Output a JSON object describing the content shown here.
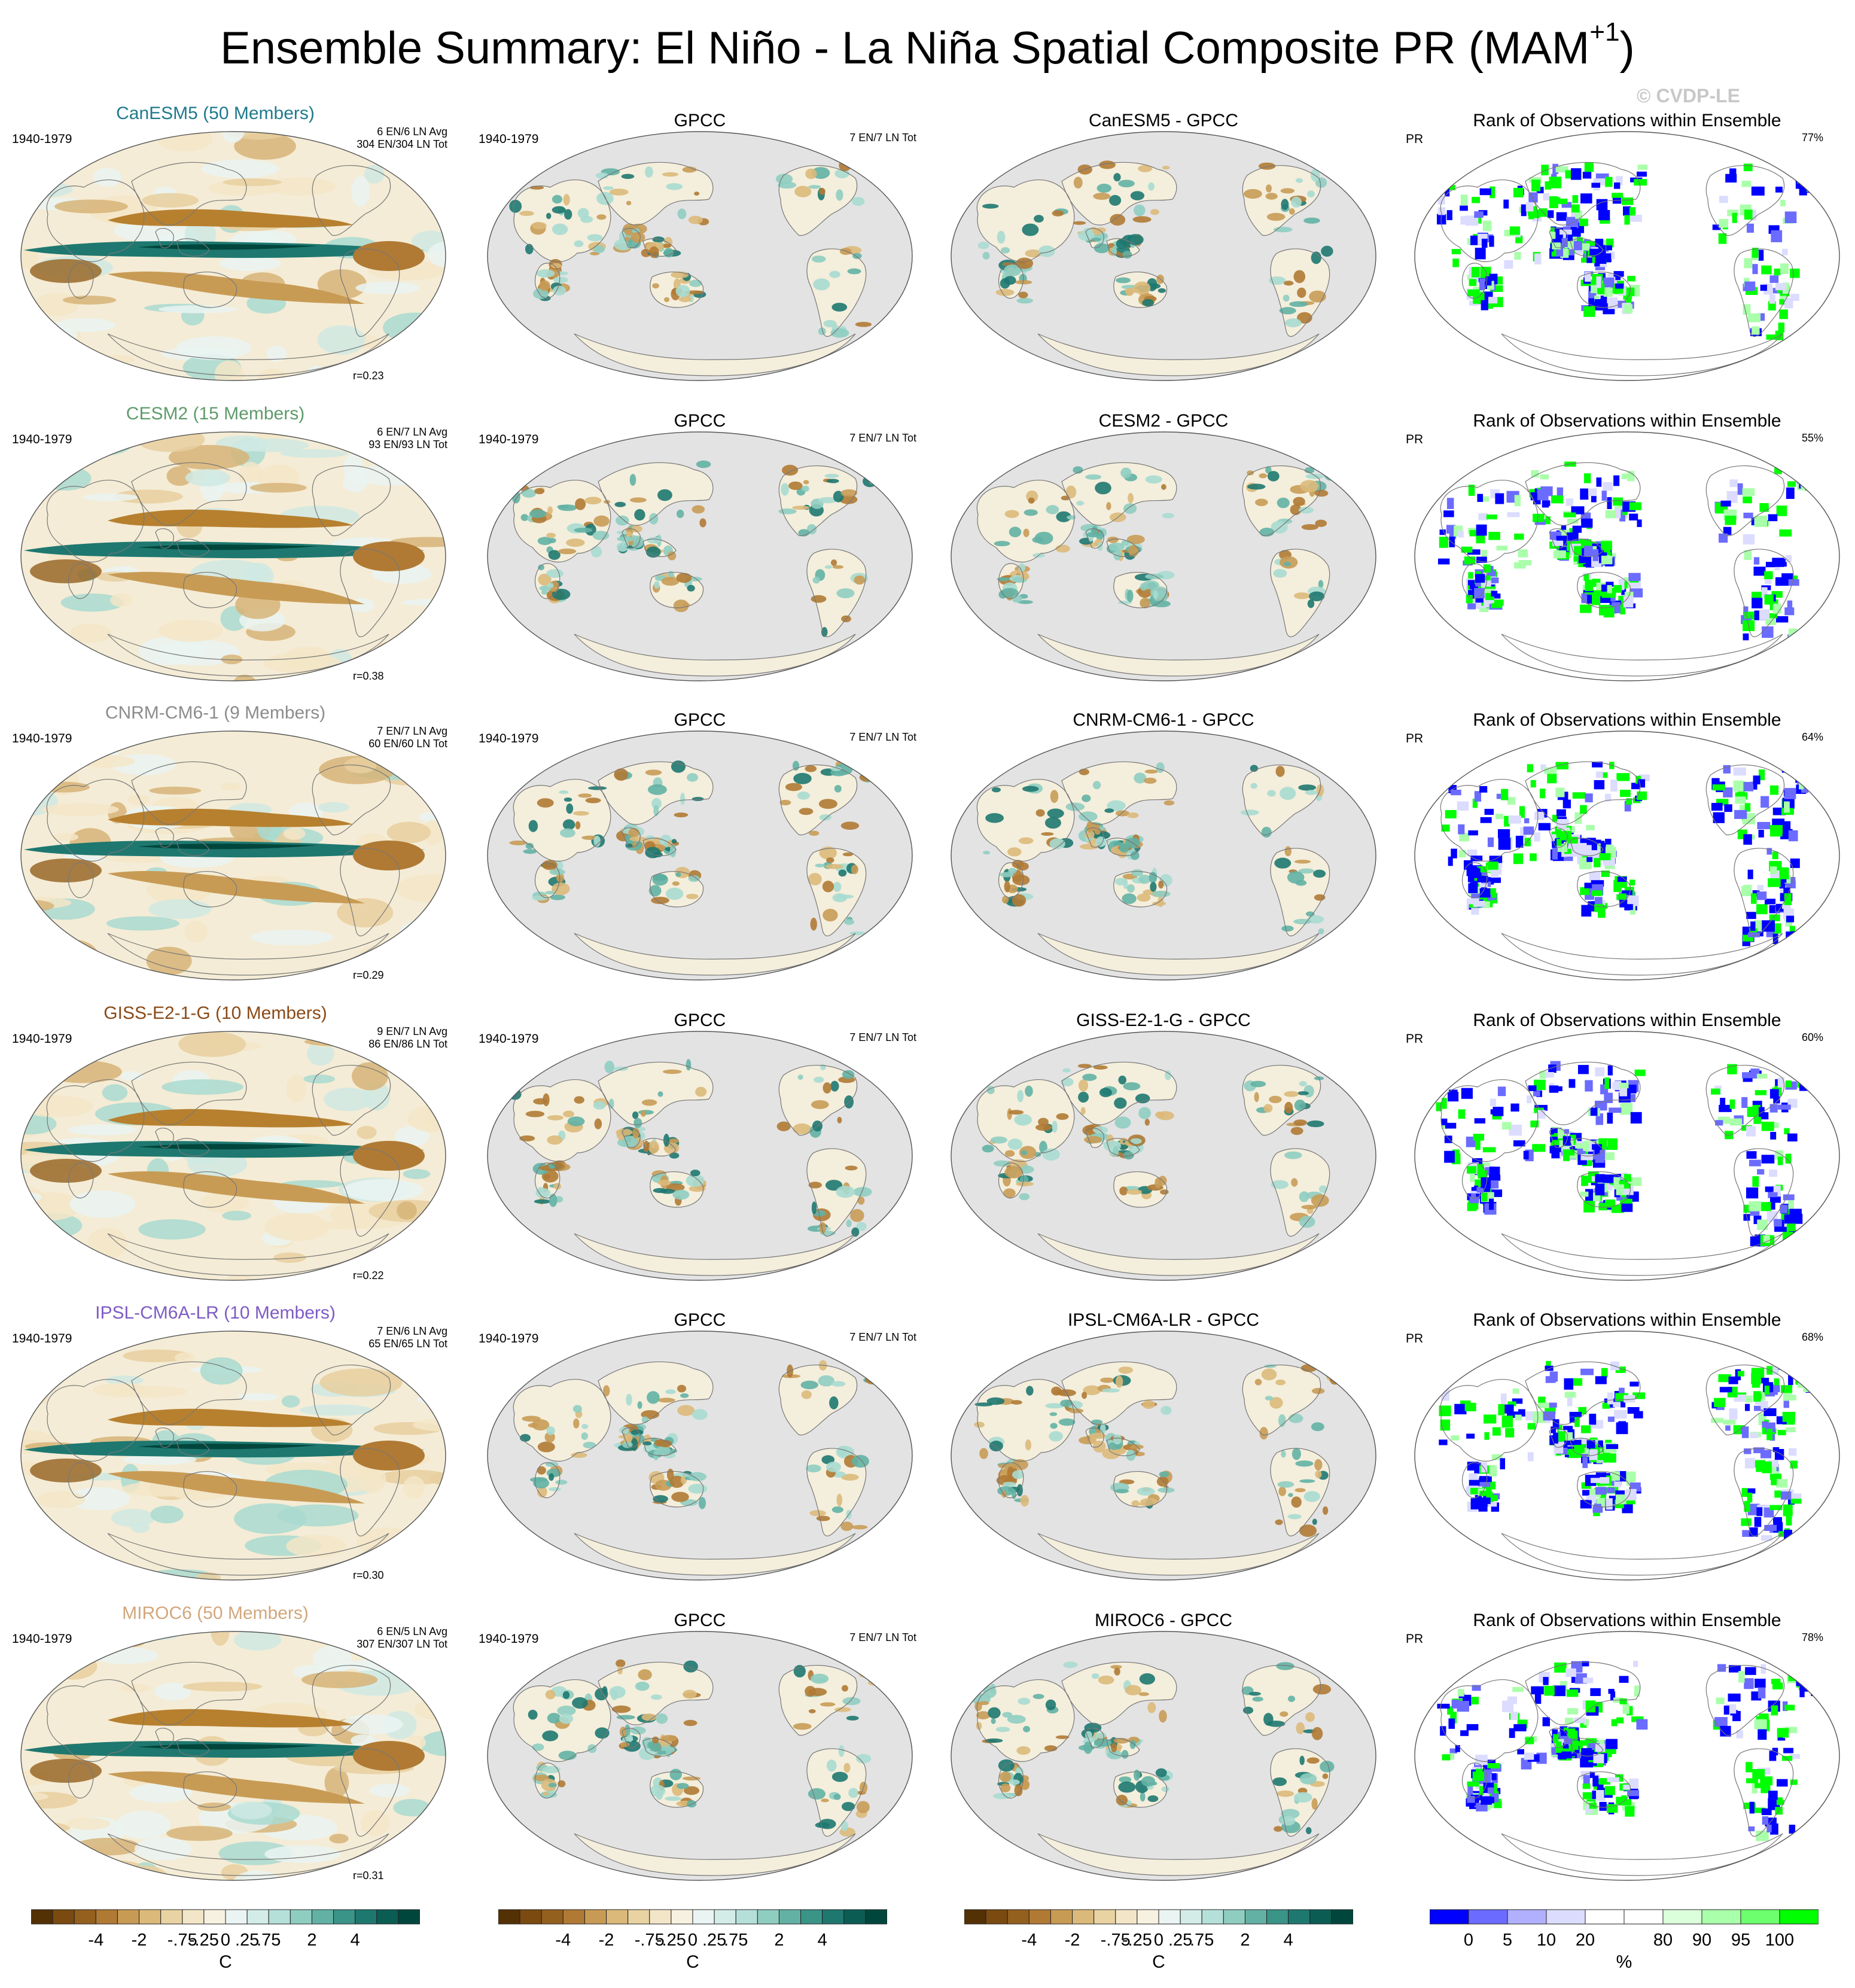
{
  "title": {
    "prefix": "Ensemble Summary: El Niño - La Niña Spatial Composite PR (MAM",
    "sup": "+1",
    "suffix": ")"
  },
  "copyright": "© CVDP-LE",
  "column_titles": {
    "obs": "GPCC",
    "rank": "Rank of Observations within Ensemble"
  },
  "rows": [
    {
      "model": "CanESM5 (50 Members)",
      "model_color": "#1f7a8c",
      "period": "1940-1979",
      "avg": "6 EN/6 LN Avg",
      "tot": "304 EN/304 LN Tot",
      "r": "r=0.23",
      "obs_period": "1940-1979",
      "obs_tot": "7 EN/7 LN Tot",
      "diff": "CanESM5 - GPCC",
      "rank_var": "PR",
      "rank_pct": "77%"
    },
    {
      "model": "CESM2 (15 Members)",
      "model_color": "#5f9b6b",
      "period": "1940-1979",
      "avg": "6 EN/7 LN Avg",
      "tot": "93 EN/93 LN Tot",
      "r": "r=0.38",
      "obs_period": "1940-1979",
      "obs_tot": "7 EN/7 LN Tot",
      "diff": "CESM2 - GPCC",
      "rank_var": "PR",
      "rank_pct": "55%"
    },
    {
      "model": "CNRM-CM6-1 (9 Members)",
      "model_color": "#8c8c8c",
      "period": "1940-1979",
      "avg": "7 EN/7 LN Avg",
      "tot": "60 EN/60 LN Tot",
      "r": "r=0.29",
      "obs_period": "1940-1979",
      "obs_tot": "7 EN/7 LN Tot",
      "diff": "CNRM-CM6-1 - GPCC",
      "rank_var": "PR",
      "rank_pct": "64%"
    },
    {
      "model": "GISS-E2-1-G (10 Members)",
      "model_color": "#8b4a16",
      "period": "1940-1979",
      "avg": "9 EN/7 LN Avg",
      "tot": "86 EN/86 LN Tot",
      "r": "r=0.22",
      "obs_period": "1940-1979",
      "obs_tot": "7 EN/7 LN Tot",
      "diff": "GISS-E2-1-G - GPCC",
      "rank_var": "PR",
      "rank_pct": "60%"
    },
    {
      "model": "IPSL-CM6A-LR (10 Members)",
      "model_color": "#7e5bc4",
      "period": "1940-1979",
      "avg": "7 EN/6 LN Avg",
      "tot": "65 EN/65 LN Tot",
      "r": "r=0.30",
      "obs_period": "1940-1979",
      "obs_tot": "7 EN/7 LN Tot",
      "diff": "IPSL-CM6A-LR - GPCC",
      "rank_var": "PR",
      "rank_pct": "68%"
    },
    {
      "model": "MIROC6 (50 Members)",
      "model_color": "#d2a77c",
      "period": "1940-1979",
      "avg": "6 EN/5 LN Avg",
      "tot": "307 EN/307 LN Tot",
      "r": "r=0.31",
      "obs_period": "1940-1979",
      "obs_tot": "7 EN/7 LN Tot",
      "diff": "MIROC6 - GPCC",
      "rank_var": "PR",
      "rank_pct": "78%"
    }
  ],
  "colorbars": {
    "brbg": {
      "colors": [
        "#543005",
        "#7a4a10",
        "#94601d",
        "#b07a34",
        "#c89b55",
        "#dbb97a",
        "#e9d3a2",
        "#f3e6c8",
        "#f7f1e2",
        "#eaf4f2",
        "#d3ece8",
        "#b5e0d9",
        "#8fcdc1",
        "#62b1a4",
        "#3a9488",
        "#1e7870",
        "#0b5d54",
        "#00463c"
      ],
      "ticks": [
        "-4",
        "-2",
        "-.75",
        "-.25",
        "0",
        ".25",
        ".75",
        "2",
        "4"
      ],
      "unit": "C"
    },
    "rank": {
      "colors": [
        "#0000ff",
        "#6b6bff",
        "#b0b0ff",
        "#dcdcff",
        "#ffffff",
        "#ffffff",
        "#dbffdb",
        "#aaffaa",
        "#6dff6d",
        "#00ff00"
      ],
      "ticks": [
        "0",
        "5",
        "10",
        "20",
        "80",
        "90",
        "95",
        "100"
      ],
      "unit": "%"
    }
  }
}
